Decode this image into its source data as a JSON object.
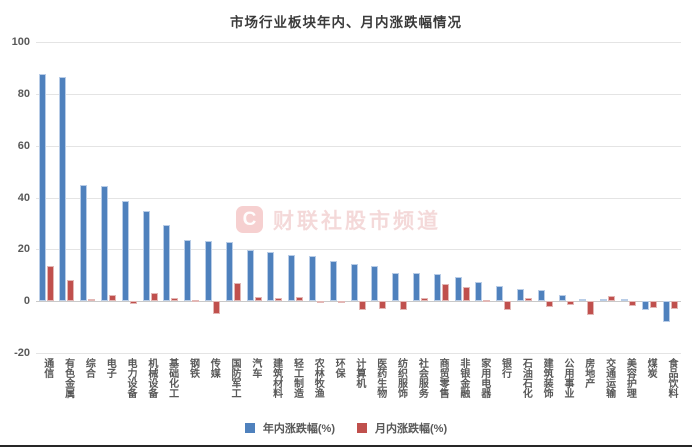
{
  "title": "市场行业板块年内、月内涨跌幅情况",
  "watermark": {
    "logo_letter": "C",
    "text": "财联社股市频道"
  },
  "chart_data": {
    "type": "bar",
    "title": "市场行业板块年内、月内涨跌幅情况",
    "categories": [
      "通信",
      "有色金属",
      "综合",
      "电子",
      "电力设备",
      "机械设备",
      "基础化工",
      "钢铁",
      "传媒",
      "国防军工",
      "汽车",
      "建筑材料",
      "轻工制造",
      "农林牧渔",
      "环保",
      "计算机",
      "医药生物",
      "纺织服饰",
      "社会服务",
      "商贸零售",
      "非银金融",
      "家用电器",
      "银行",
      "石油石化",
      "建筑装饰",
      "公用事业",
      "房地产",
      "交通运输",
      "美容护理",
      "煤炭",
      "食品饮料"
    ],
    "series": [
      {
        "name": "年内涨跌幅(%)",
        "color": "#4F81BD",
        "values": [
          87.5,
          86.5,
          44.8,
          44.4,
          38.8,
          34.9,
          29.3,
          23.5,
          23.2,
          22.8,
          19.6,
          19.0,
          17.7,
          17.3,
          15.4,
          14.5,
          13.4,
          10.8,
          10.8,
          10.5,
          9.3,
          7.5,
          5.7,
          4.8,
          4.5,
          2.2,
          1.0,
          0.9,
          0.9,
          -3.6,
          -8.1
        ]
      },
      {
        "name": "月内涨跌幅(%)",
        "color": "#C0504D",
        "values": [
          13.5,
          8.1,
          1.0,
          2.5,
          -1.2,
          3.2,
          1.3,
          0.5,
          -5.0,
          7.1,
          1.8,
          1.2,
          1.5,
          -0.5,
          -0.5,
          -3.4,
          -2.9,
          -3.3,
          1.2,
          6.7,
          5.6,
          0.6,
          -3.3,
          1.3,
          -2.3,
          -1.4,
          -5.5,
          2.0,
          -2.0,
          -2.5,
          -2.9
        ]
      }
    ],
    "ylim": [
      -20,
      100
    ],
    "yticks": [
      100,
      80,
      60,
      40,
      20,
      0,
      -20
    ],
    "xlabel": "",
    "ylabel": "",
    "grid": true,
    "legend_position": "bottom"
  }
}
